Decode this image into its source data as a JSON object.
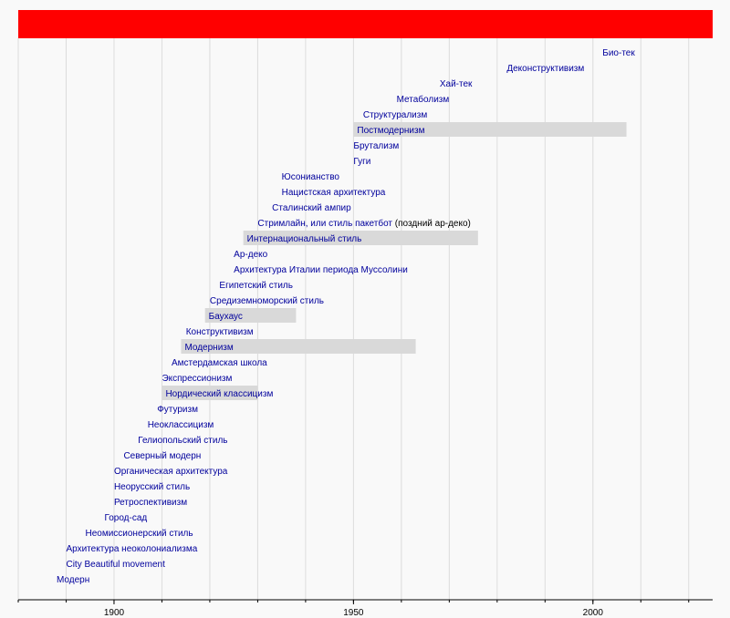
{
  "chart_data": {
    "type": "bar",
    "xlim": [
      1880,
      2025
    ],
    "x_ticks": [
      1900,
      1950,
      2000
    ],
    "x_tick_labels": [
      "1900",
      "1950",
      "2000"
    ],
    "grid": true,
    "colors": {
      "background": "#f9f9f9",
      "header_band": "#ff0000",
      "bar": "#d9d9d9",
      "label": "#00009c",
      "label_plain": "#000000",
      "grid": "#dcdcdc",
      "axis": "#000000"
    },
    "periods": [
      {
        "label": "Модерн",
        "start": 1888
      },
      {
        "label": "City Beautiful movement",
        "start": 1890
      },
      {
        "label": "Архитектура неоколониализма",
        "start": 1890
      },
      {
        "label": "Неомиссионерский стиль",
        "start": 1894
      },
      {
        "label": "Город-сад",
        "start": 1898
      },
      {
        "label": "Ретроспективизм",
        "start": 1900
      },
      {
        "label": "Неорусский стиль",
        "start": 1900
      },
      {
        "label": "Органическая архитектура",
        "start": 1900
      },
      {
        "label": "Северный модерн",
        "start": 1902
      },
      {
        "label": "Гелиопольский стиль",
        "start": 1905
      },
      {
        "label": "Неоклассицизм",
        "start": 1907
      },
      {
        "label": "Футуризм",
        "start": 1909
      },
      {
        "label": "Нордический классицизм",
        "start": 1910,
        "end": 1930,
        "bar": true
      },
      {
        "label": "Экспрессионизм",
        "start": 1910
      },
      {
        "label": "Амстердамская школа",
        "start": 1912
      },
      {
        "label": "Модернизм",
        "start": 1914,
        "end": 1963,
        "bar": true
      },
      {
        "label": "Конструктивизм",
        "start": 1915
      },
      {
        "label": "Баухаус",
        "start": 1919,
        "end": 1938,
        "bar": true
      },
      {
        "label": "Средиземноморский стиль",
        "start": 1920
      },
      {
        "label": "Египетский стиль",
        "start": 1922
      },
      {
        "label": "Архитектура Италии периода Муссолини",
        "start": 1925
      },
      {
        "label": "Ар-деко",
        "start": 1925
      },
      {
        "label": "Интернациональный стиль",
        "start": 1927,
        "end": 1976,
        "bar": true
      },
      {
        "label": "Стримлайн, или стиль пакетбот",
        "note": "(поздний ар-деко)",
        "start": 1930
      },
      {
        "label": "Сталинский ампир",
        "start": 1933
      },
      {
        "label": "Нацистская архитектура",
        "start": 1935
      },
      {
        "label": "Юсонианство",
        "start": 1935
      },
      {
        "label": "Гуги",
        "start": 1950
      },
      {
        "label": "Брутализм",
        "start": 1950
      },
      {
        "label": "Постмодернизм",
        "start": 1950,
        "end": 2007,
        "bar": true
      },
      {
        "label": "Структурализм",
        "start": 1952
      },
      {
        "label": "Метаболизм",
        "start": 1959
      },
      {
        "label": "Хай-тек",
        "start": 1968
      },
      {
        "label": "Деконструктивизм",
        "start": 1982
      },
      {
        "label": "Био-тек",
        "start": 2002
      }
    ]
  }
}
